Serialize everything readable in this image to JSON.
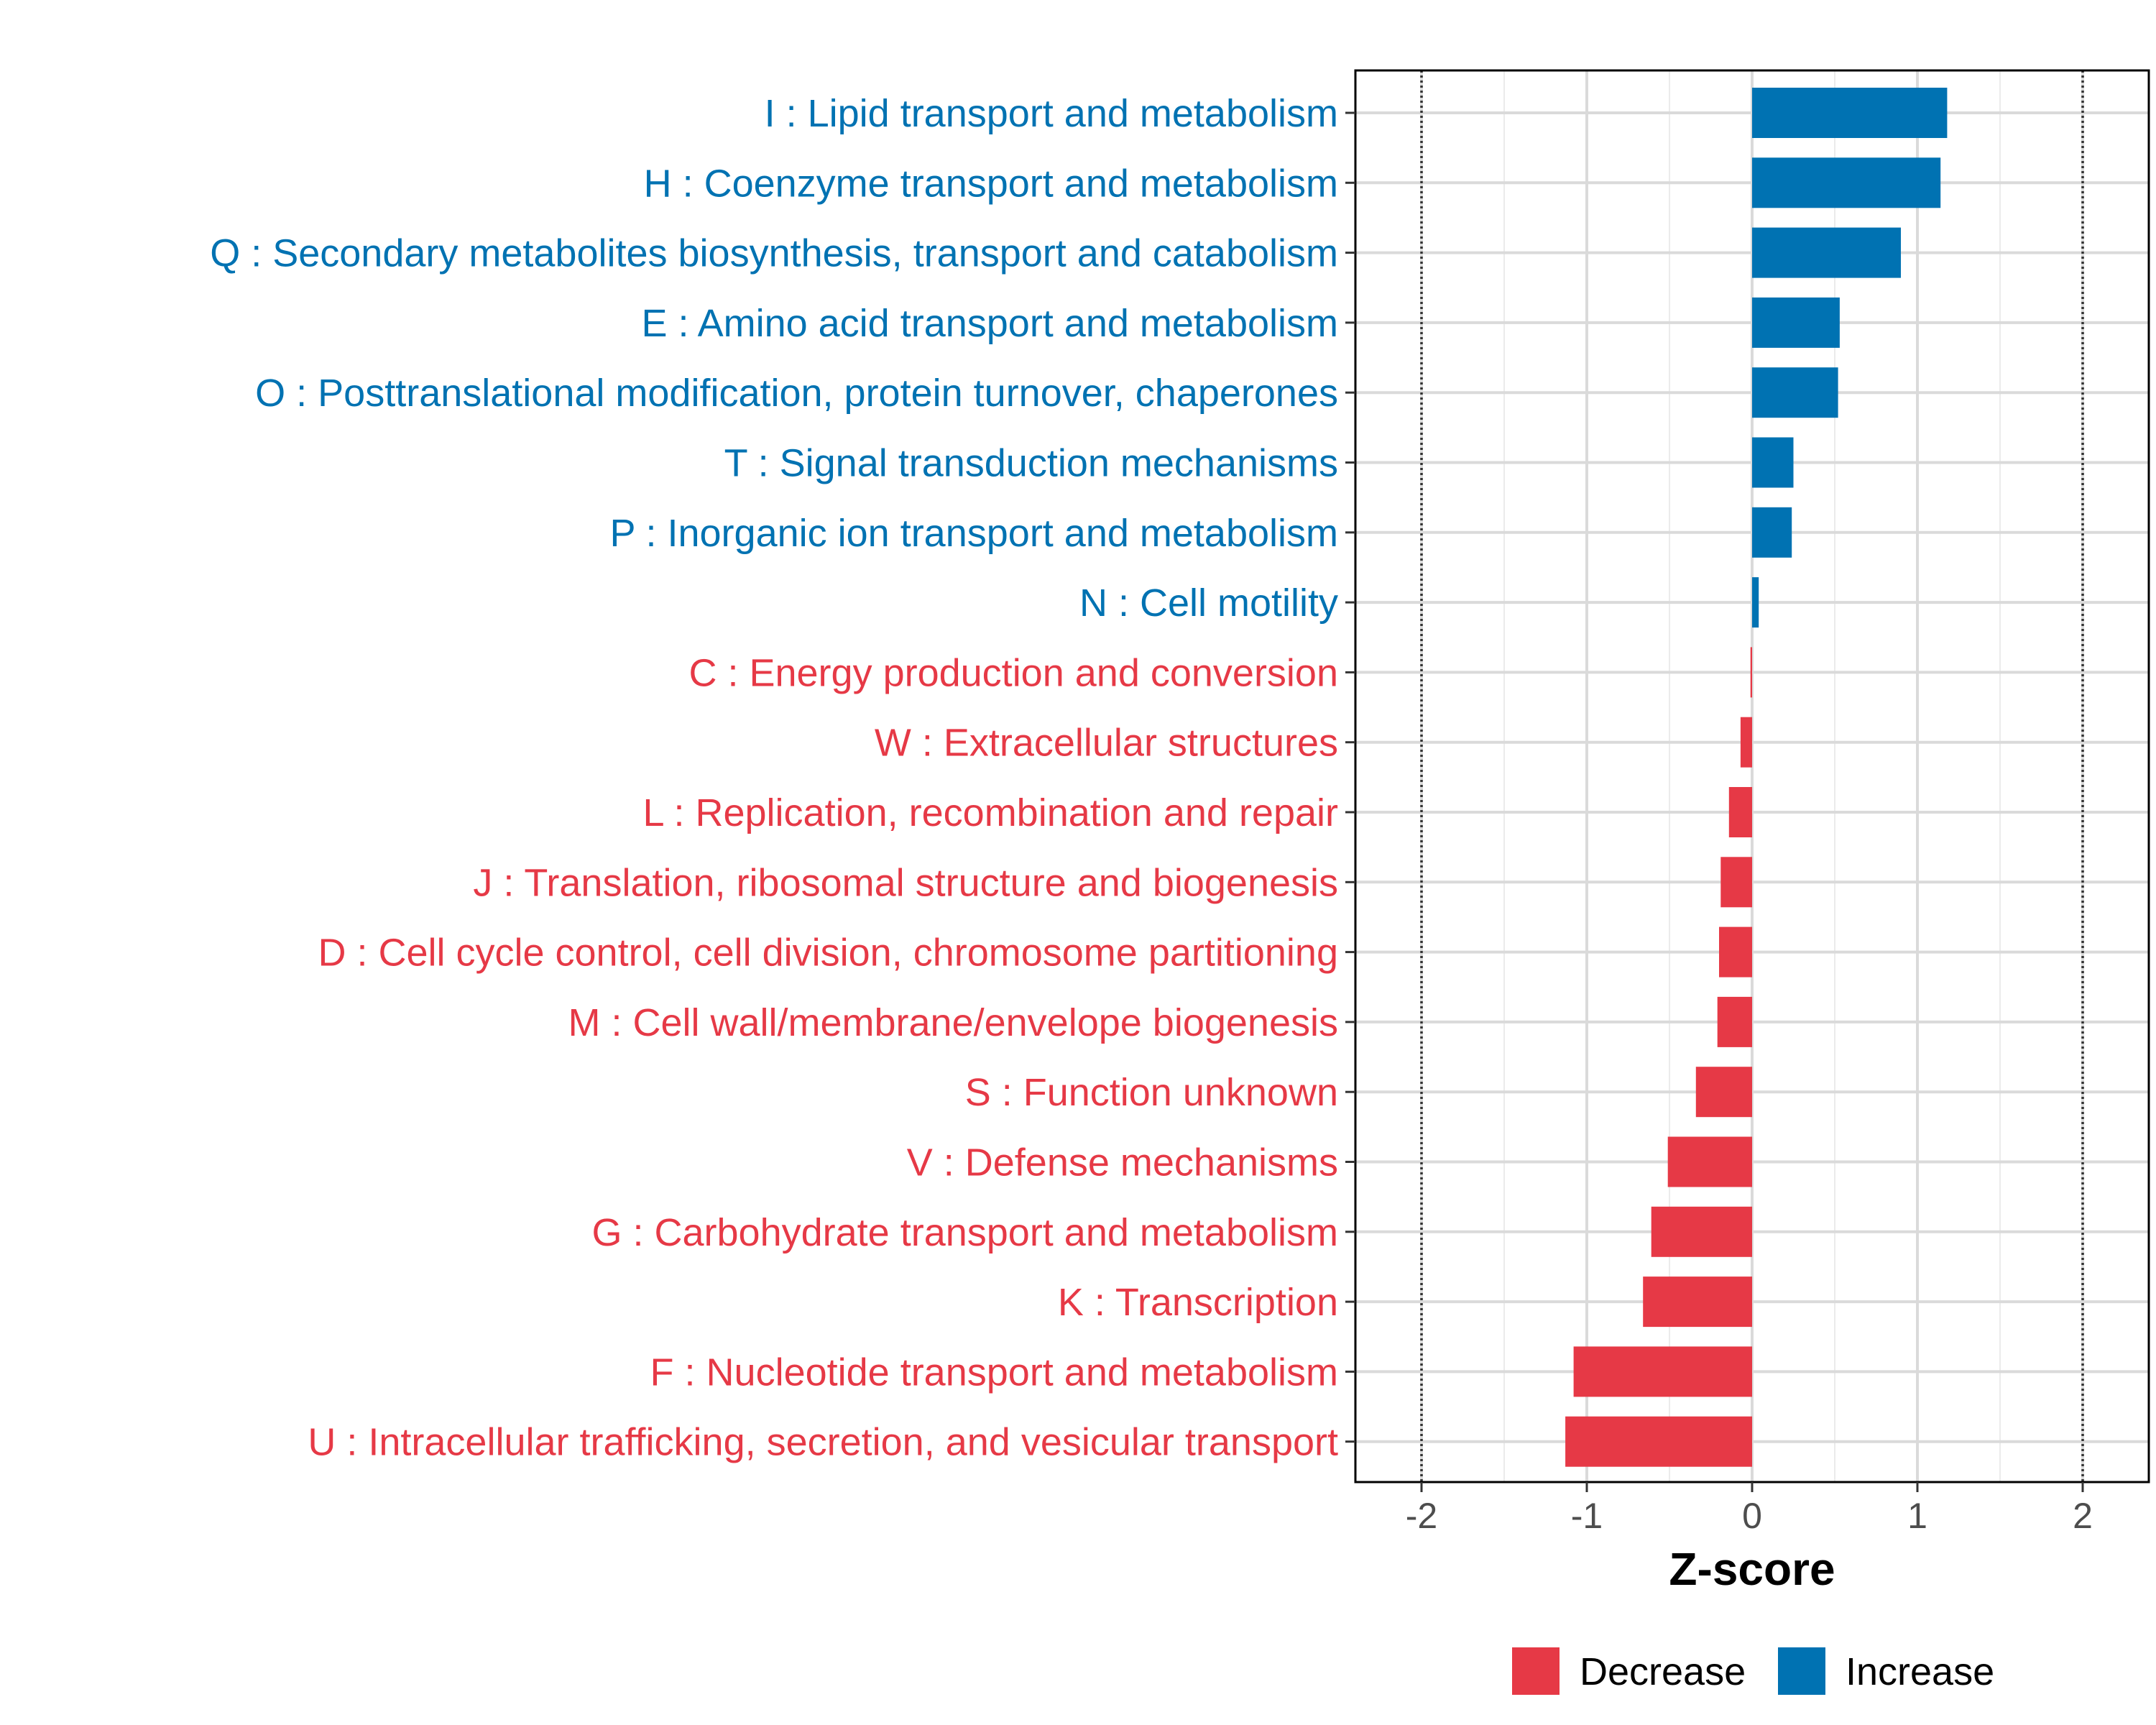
{
  "chart_data": {
    "type": "bar",
    "orientation": "horizontal",
    "xlabel": "Z-score",
    "xlim": [
      -2.4,
      2.4
    ],
    "xticks": [
      -2,
      -1,
      0,
      1,
      2
    ],
    "xtick_labels": [
      "-2",
      "-1",
      "0",
      "1",
      "2"
    ],
    "threshold_lines": [
      -2,
      2
    ],
    "grid": true,
    "legend_position": "bottom",
    "colors": {
      "Decrease": "#e63946",
      "Increase": "#0072b2"
    },
    "legend": [
      {
        "name": "Decrease",
        "color": "#e63946"
      },
      {
        "name": "Increase",
        "color": "#0072b2"
      }
    ],
    "categories": [
      "I : Lipid transport and metabolism",
      "H : Coenzyme transport and metabolism",
      "Q : Secondary metabolites biosynthesis, transport and catabolism",
      "E : Amino acid transport and metabolism",
      "O : Posttranslational modification, protein turnover, chaperones",
      "T : Signal transduction mechanisms",
      "P : Inorganic ion transport and metabolism",
      "N : Cell motility",
      "C : Energy production and conversion",
      "W : Extracellular structures",
      "L : Replication, recombination and repair",
      "J : Translation, ribosomal structure and biogenesis",
      "D : Cell cycle control, cell division, chromosome partitioning",
      "M : Cell wall/membrane/envelope biogenesis",
      "S : Function unknown",
      "V : Defense mechanisms",
      "G : Carbohydrate transport and metabolism",
      "K : Transcription",
      "F : Nucleotide transport and metabolism",
      "U : Intracellular trafficking, secretion, and vesicular transport"
    ],
    "values": [
      1.18,
      1.14,
      0.9,
      0.53,
      0.52,
      0.25,
      0.24,
      0.04,
      -0.01,
      -0.07,
      -0.14,
      -0.19,
      -0.2,
      -0.21,
      -0.34,
      -0.51,
      -0.61,
      -0.66,
      -1.08,
      -1.13
    ],
    "groups": [
      "Increase",
      "Increase",
      "Increase",
      "Increase",
      "Increase",
      "Increase",
      "Increase",
      "Increase",
      "Decrease",
      "Decrease",
      "Decrease",
      "Decrease",
      "Decrease",
      "Decrease",
      "Decrease",
      "Decrease",
      "Decrease",
      "Decrease",
      "Decrease",
      "Decrease"
    ]
  }
}
